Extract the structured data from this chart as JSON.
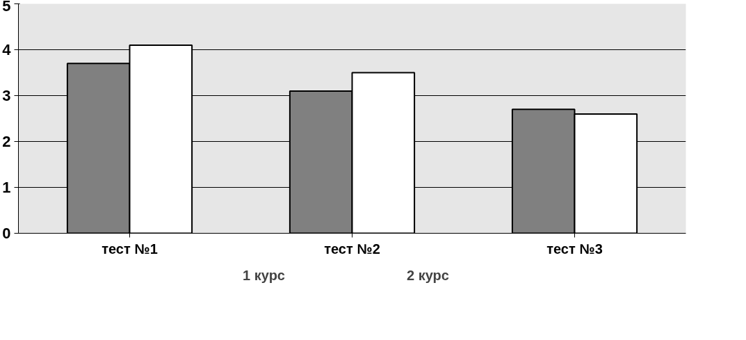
{
  "chart_data": {
    "type": "bar",
    "categories": [
      "тест №1",
      "тест №2",
      "тест №3"
    ],
    "series": [
      {
        "name": "1 курс",
        "color": "#808080",
        "values": [
          3.7,
          3.1,
          2.7
        ]
      },
      {
        "name": "2 курс",
        "color": "#ffffff",
        "values": [
          4.1,
          3.5,
          2.6
        ]
      }
    ],
    "ylim": [
      0,
      5
    ],
    "yticks": [
      0,
      1,
      2,
      3,
      4,
      5
    ],
    "grid": "y",
    "legend": "bottom"
  }
}
